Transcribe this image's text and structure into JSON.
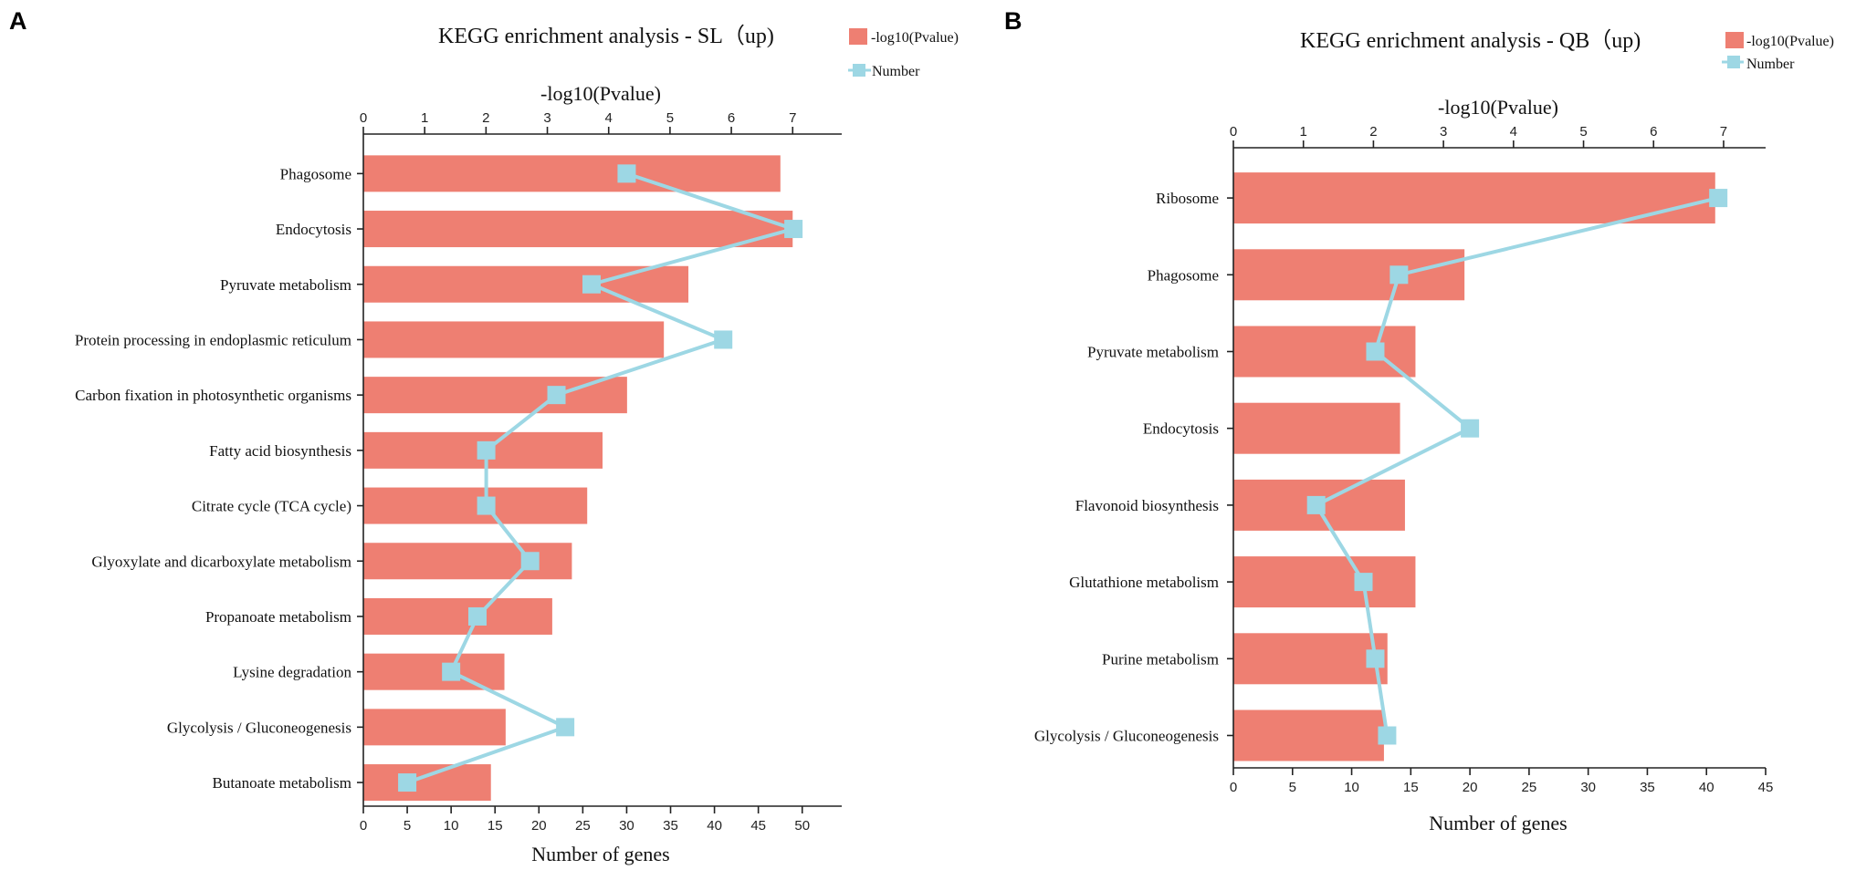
{
  "chart_data": [
    {
      "panel": "A",
      "type": "bar",
      "title": "KEGG enrichment analysis - SL（up)",
      "orientation": "horizontal",
      "categories": [
        "Phagosome",
        "Endocytosis",
        "Pyruvate metabolism",
        "Protein processing in endoplasmic reticulum",
        "Carbon fixation in photosynthetic organisms",
        "Fatty acid biosynthesis",
        "Citrate cycle (TCA cycle)",
        "Glyoxylate and dicarboxylate metabolism",
        "Propanoate metabolism",
        "Lysine degradation",
        "Glycolysis / Gluconeogenesis",
        "Butanoate metabolism"
      ],
      "series": [
        {
          "name": "-log10(Pvalue)",
          "kind": "bar",
          "axis": "top",
          "color": "#EE7F72",
          "values": [
            6.8,
            7.0,
            5.3,
            4.9,
            4.3,
            3.9,
            3.65,
            3.4,
            3.08,
            2.3,
            2.32,
            2.08
          ]
        },
        {
          "name": "Number",
          "kind": "line",
          "axis": "bottom",
          "color": "#9DD7E4",
          "values": [
            30,
            49,
            26,
            41,
            22,
            14,
            14,
            19,
            13,
            10,
            23,
            5
          ]
        }
      ],
      "top_axis": {
        "label": "-log10(Pvalue)",
        "range": [
          0,
          7.8
        ],
        "ticks": [
          0,
          1,
          2,
          3,
          4,
          5,
          6,
          7
        ]
      },
      "bottom_axis": {
        "label": "Number of genes",
        "range": [
          0,
          54.5
        ],
        "ticks": [
          0,
          5,
          10,
          15,
          20,
          25,
          30,
          35,
          40,
          45,
          50
        ]
      },
      "legend": {
        "position": "top-right",
        "entries": [
          "-log10(Pvalue)",
          "Number"
        ]
      }
    },
    {
      "panel": "B",
      "type": "bar",
      "title": "KEGG enrichment analysis - QB（up)",
      "orientation": "horizontal",
      "categories": [
        "Ribosome",
        "Phagosome",
        "Pyruvate metabolism",
        "Endocytosis",
        "Flavonoid biosynthesis",
        "Glutathione metabolism",
        "Purine metabolism",
        "Glycolysis / Gluconeogenesis"
      ],
      "series": [
        {
          "name": "-log10(Pvalue)",
          "kind": "bar",
          "axis": "top",
          "color": "#EE7F72",
          "values": [
            6.88,
            3.3,
            2.6,
            2.38,
            2.45,
            2.6,
            2.2,
            2.15
          ]
        },
        {
          "name": "Number",
          "kind": "line",
          "axis": "bottom",
          "color": "#9DD7E4",
          "values": [
            41,
            14,
            12,
            20,
            7,
            11,
            12,
            13
          ]
        }
      ],
      "top_axis": {
        "label": "-log10(Pvalue)",
        "range": [
          0,
          7.6
        ],
        "ticks": [
          0,
          1,
          2,
          3,
          4,
          5,
          6,
          7
        ]
      },
      "bottom_axis": {
        "label": "Number of genes",
        "range": [
          0,
          45
        ],
        "ticks": [
          0,
          5,
          10,
          15,
          20,
          25,
          30,
          35,
          40,
          45
        ]
      },
      "legend": {
        "position": "top-right",
        "entries": [
          "-log10(Pvalue)",
          "Number"
        ]
      }
    }
  ]
}
